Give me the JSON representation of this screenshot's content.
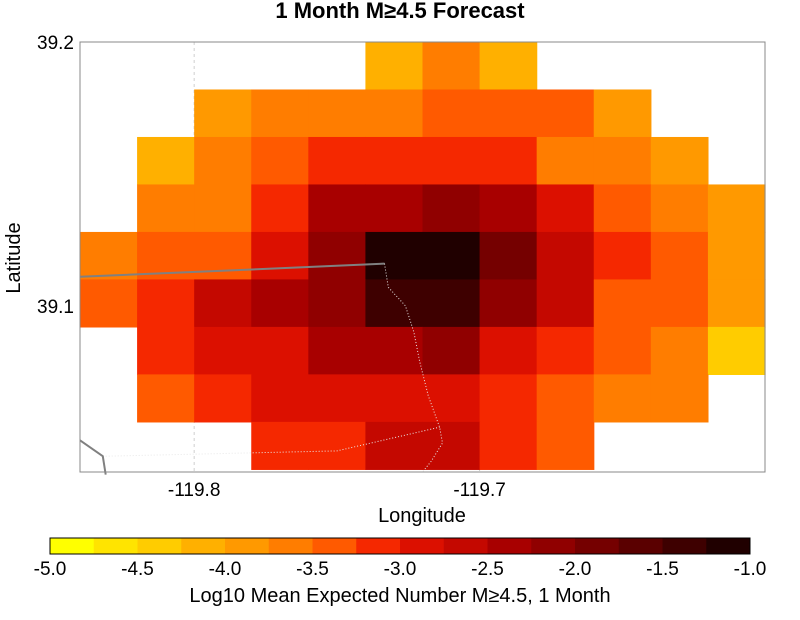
{
  "chart_data": {
    "type": "heatmap",
    "title": "1 Month M≥4.5 Forecast",
    "xlabel": "Longitude",
    "ylabel": "Latitude",
    "xlim": [
      -119.84,
      -119.6
    ],
    "ylim": [
      39.037,
      39.2
    ],
    "x_ticks": [
      -119.8,
      -119.7
    ],
    "x_tick_labels": [
      "-119.8",
      "-119.7"
    ],
    "y_ticks": [
      39.1,
      39.2
    ],
    "y_tick_labels": [
      "39.1",
      "39.2"
    ],
    "grid": true,
    "grid_style": "dashed",
    "cell_lon_step": 0.02,
    "cell_lat_step": 0.018,
    "col_lon_centers": [
      -119.83,
      -119.81,
      -119.79,
      -119.77,
      -119.75,
      -119.73,
      -119.71,
      -119.69,
      -119.67,
      -119.65,
      -119.63,
      -119.61
    ],
    "row_lat_centers": [
      39.191,
      39.173,
      39.155,
      39.137,
      39.119,
      39.101,
      39.083,
      39.065,
      39.047
    ],
    "values": [
      [
        null,
        null,
        null,
        null,
        null,
        -4.25,
        -3.75,
        -4.25,
        null,
        null,
        null,
        null
      ],
      [
        null,
        null,
        -4.0,
        -3.75,
        -3.75,
        -3.75,
        -3.5,
        -3.5,
        -3.5,
        -4.0,
        null,
        null
      ],
      [
        null,
        -4.25,
        -3.75,
        -3.5,
        -3.25,
        -3.25,
        -3.25,
        -3.25,
        -3.75,
        -3.75,
        -4.0,
        null
      ],
      [
        null,
        -3.75,
        -3.75,
        -3.25,
        -2.5,
        -2.5,
        -2.25,
        -2.5,
        -3.0,
        -3.5,
        -3.75,
        -4.0
      ],
      [
        -3.75,
        -3.5,
        -3.5,
        -3.0,
        -2.25,
        -1.25,
        -1.0,
        -2.0,
        -2.75,
        -3.25,
        -3.5,
        -4.0
      ],
      [
        -3.5,
        -3.25,
        -2.75,
        -2.5,
        -2.25,
        -1.5,
        -1.5,
        -2.25,
        -2.75,
        -3.5,
        -3.5,
        -4.0
      ],
      [
        null,
        -3.25,
        -3.0,
        -3.0,
        -2.5,
        -2.5,
        -2.25,
        -3.0,
        -3.25,
        -3.5,
        -3.75,
        -4.5
      ],
      [
        null,
        -3.5,
        -3.25,
        -3.0,
        -3.0,
        -3.0,
        -3.0,
        -3.25,
        -3.5,
        -3.75,
        -3.75,
        null
      ],
      [
        null,
        null,
        null,
        -3.25,
        -3.25,
        -2.75,
        -2.75,
        -3.25,
        -3.5,
        null,
        null,
        null
      ]
    ],
    "colorbar": {
      "label": "Log10 Mean Expected Number M≥4.5, 1 Month",
      "min": -5.0,
      "max": -1.0,
      "step": 0.25,
      "tick_values": [
        -5.0,
        -4.5,
        -4.0,
        -3.5,
        -3.0,
        -2.5,
        -2.0,
        -1.5,
        -1.0
      ],
      "tick_labels": [
        "-5.0",
        "-4.5",
        "-4.0",
        "-3.5",
        "-3.0",
        "-2.5",
        "-2.0",
        "-1.5",
        "-1.0"
      ],
      "colors": [
        "#ffff00",
        "#ffe400",
        "#ffcc00",
        "#ffb000",
        "#ff9900",
        "#ff7d00",
        "#ff5a00",
        "#f52800",
        "#dc1000",
        "#c40800",
        "#a80000",
        "#900000",
        "#750000",
        "#5a0000",
        "#3e0000",
        "#200000"
      ]
    },
    "boundary_lines": [
      {
        "style": "solid",
        "color": "#808080",
        "points": [
          [
            -119.84,
            39.049
          ],
          [
            -119.832,
            39.043
          ],
          [
            -119.831,
            39.036
          ]
        ]
      },
      {
        "style": "solid",
        "color": "#808080",
        "points": [
          [
            -119.84,
            39.111
          ],
          [
            -119.775,
            39.114
          ],
          [
            -119.7333,
            39.116
          ]
        ]
      },
      {
        "style": "dotted",
        "color": "#909090",
        "points": [
          [
            -119.7333,
            39.116
          ],
          [
            -119.732,
            39.107
          ],
          [
            -119.726,
            39.1
          ],
          [
            -119.723,
            39.09
          ],
          [
            -119.721,
            39.079
          ],
          [
            -119.718,
            39.066
          ],
          [
            -119.714,
            39.054
          ],
          [
            -119.713,
            39.048
          ],
          [
            -119.717,
            39.041
          ],
          [
            -119.72,
            39.037
          ]
        ]
      },
      {
        "style": "dotted",
        "color": "#909090",
        "points": [
          [
            -119.831,
            39.043
          ],
          [
            -119.75,
            39.045
          ],
          [
            -119.714,
            39.054
          ]
        ]
      }
    ]
  }
}
